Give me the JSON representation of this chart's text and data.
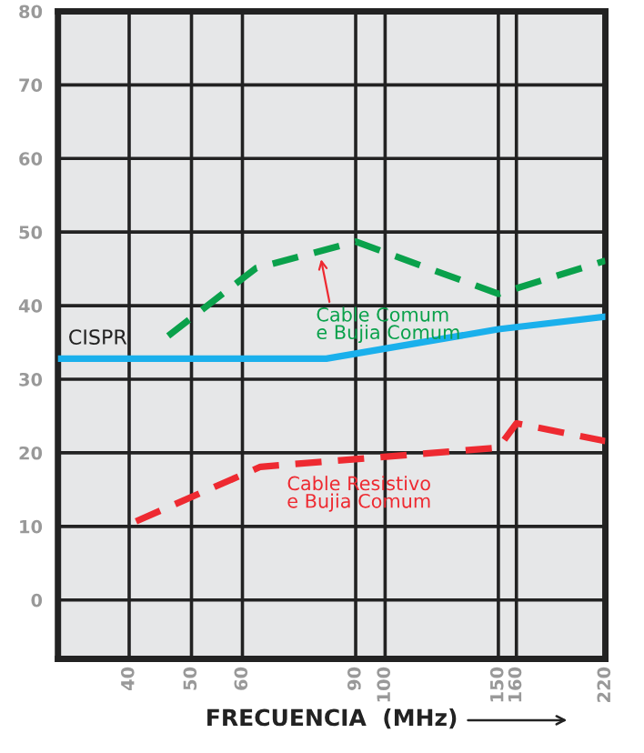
{
  "chart_data": {
    "type": "line",
    "xlabel": "FRECUENCIA  (MHz)",
    "log": "x",
    "xlim": [
      31,
      220
    ],
    "xticks": [
      40,
      50,
      60,
      90,
      100,
      150,
      160,
      220
    ],
    "ylim": [
      -8,
      80
    ],
    "yticks": [
      0,
      10,
      20,
      30,
      40,
      50,
      60,
      70,
      80
    ],
    "grid": true,
    "legend": false,
    "marker": "none",
    "series": [
      {
        "name": "CISPR",
        "color": "#1ab0ec",
        "line_style": "solid",
        "x": [
          31,
          81,
          150,
          220
        ],
        "values": [
          32.8,
          32.8,
          36.8,
          38.5
        ]
      },
      {
        "color": "#0aa14b",
        "line_style": "dashed",
        "x": [
          46,
          63,
          90,
          150,
          220
        ],
        "values": [
          35.9,
          45.1,
          48.7,
          41.6,
          46.1
        ]
      },
      {
        "color": "#ee2a31",
        "line_style": "dashed",
        "x": [
          41,
          64,
          150,
          160,
          220
        ],
        "values": [
          10.7,
          18.1,
          20.7,
          24.0,
          21.6
        ]
      }
    ],
    "annotations": [
      {
        "text": "Cable Comum\ne Bujia Comum",
        "x": 79.5,
        "y": 46.3
      },
      "Cable Resistivo\ne Bujia Comum"
    ]
  }
}
